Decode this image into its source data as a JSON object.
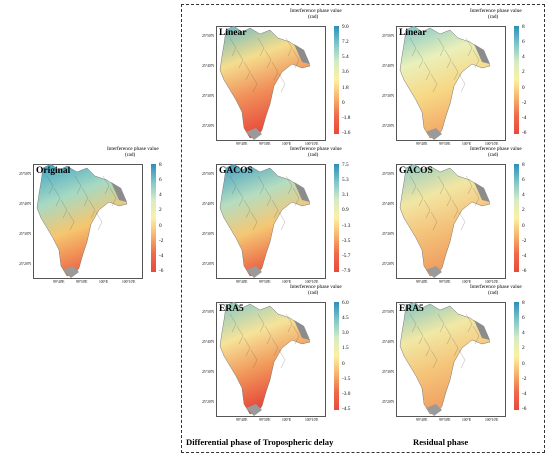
{
  "colorbar_title": "Interference phase value",
  "colorbar_unit": "(rad)",
  "lat_labels": [
    "25°50'N",
    "25°40'N",
    "25°30'N",
    "25°20'N"
  ],
  "lon_labels": [
    "99°40'E",
    "99°50'E",
    "100°E",
    "100°10'E"
  ],
  "panels": [
    {
      "id": "original",
      "title": "Original",
      "ticks": [
        "8",
        "6",
        "4",
        "2",
        "0",
        "-2",
        "-4",
        "-6"
      ]
    },
    {
      "id": "diff-linear",
      "title": "Linear",
      "ticks": [
        "9.0",
        "7.2",
        "5.4",
        "3.6",
        "1.8",
        "0",
        "-1.8",
        "-3.6"
      ]
    },
    {
      "id": "diff-gacos",
      "title": "GACOS",
      "ticks": [
        "7.5",
        "5.3",
        "3.1",
        "0.9",
        "-1.3",
        "-3.5",
        "-5.7",
        "-7.9"
      ]
    },
    {
      "id": "diff-era5",
      "title": "ERA5",
      "ticks": [
        "6.0",
        "4.5",
        "3.0",
        "1.5",
        "0",
        "-1.5",
        "-3.0",
        "-4.5"
      ]
    },
    {
      "id": "res-linear",
      "title": "Linear",
      "ticks": [
        "8",
        "6",
        "4",
        "2",
        "0",
        "-2",
        "-4",
        "-6"
      ]
    },
    {
      "id": "res-gacos",
      "title": "GACOS",
      "ticks": [
        "8",
        "6",
        "4",
        "2",
        "0",
        "-2",
        "-4",
        "-6"
      ]
    },
    {
      "id": "res-era5",
      "title": "ERA5",
      "ticks": [
        "8",
        "6",
        "4",
        "2",
        "0",
        "-2",
        "-4",
        "-6"
      ]
    }
  ],
  "bottom_labels": {
    "differential": "Differential phase of Tropospheric delay",
    "residual": "Residual phase"
  }
}
